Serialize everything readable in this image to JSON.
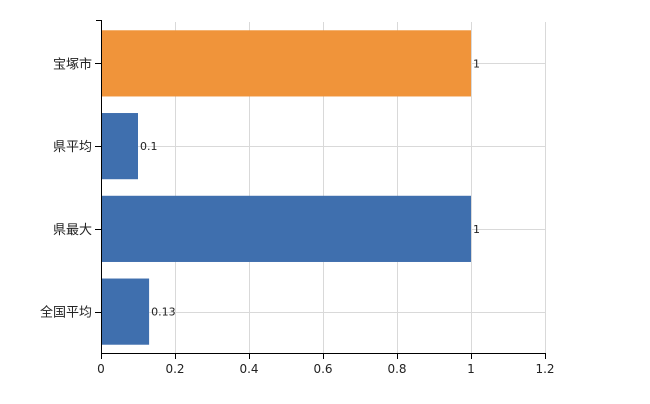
{
  "chart_data": {
    "type": "bar",
    "orientation": "horizontal",
    "categories": [
      "宝塚市",
      "県平均",
      "県最大",
      "全国平均"
    ],
    "values": [
      1,
      0.1,
      1,
      0.13
    ],
    "data_labels": [
      "1",
      "0.1",
      "1",
      "0.13"
    ],
    "bar_colors": [
      "#f0943a",
      "#3f6fae",
      "#3f6fae",
      "#3f6fae"
    ],
    "xlim": [
      0,
      1.2
    ],
    "x_ticks": [
      0,
      0.2,
      0.4,
      0.6,
      0.8,
      1,
      1.2
    ],
    "x_tick_labels": [
      "0",
      "0.2",
      "0.4",
      "0.6",
      "0.8",
      "1",
      "1.2"
    ],
    "grid": true,
    "title": "",
    "xlabel": "",
    "ylabel": ""
  }
}
